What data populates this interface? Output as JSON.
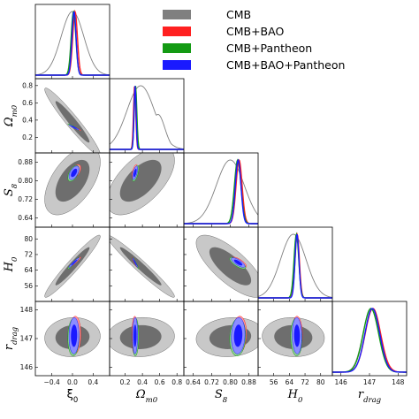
{
  "chart_data": {
    "type": "corner",
    "parameters": [
      {
        "id": "xi0",
        "label": "ξ₀",
        "label_base": "ξ",
        "label_sub": "0",
        "upright": true,
        "ticks": [
          -0.4,
          0.0,
          0.4
        ],
        "tick_labels": [
          "−0.4",
          "0.0",
          "0.4"
        ],
        "range": [
          -0.72,
          0.72
        ]
      },
      {
        "id": "omega_m0",
        "label": "Ωm0",
        "label_base": "Ω",
        "label_sub": "m0",
        "ticks": [
          0.2,
          0.4,
          0.6,
          0.8
        ],
        "tick_labels": [
          "0.2",
          "0.4",
          "0.6",
          "0.8"
        ],
        "range": [
          0.02,
          0.88
        ]
      },
      {
        "id": "s8",
        "label": "S8",
        "label_base": "S",
        "label_sub": "8",
        "ticks": [
          0.64,
          0.72,
          0.8,
          0.88
        ],
        "tick_labels": [
          "0.64",
          "0.72",
          "0.80",
          "0.88"
        ],
        "range": [
          0.6,
          0.92
        ]
      },
      {
        "id": "h0",
        "label": "H0",
        "label_base": "H",
        "label_sub": "0",
        "ticks": [
          56,
          64,
          72,
          80
        ],
        "tick_labels": [
          "56",
          "64",
          "72",
          "80"
        ],
        "range": [
          48,
          86
        ]
      },
      {
        "id": "r_drag",
        "label": "r_drag",
        "label_base": "r",
        "label_sub": "drag",
        "ticks": [
          146,
          147,
          148
        ],
        "tick_labels": [
          "146",
          "147",
          "148"
        ],
        "range": [
          145.7,
          148.3
        ]
      }
    ],
    "series": [
      {
        "name": "CMB",
        "color": "#808080",
        "mean": {
          "xi0": 0.0,
          "omega_m0": 0.38,
          "s8": 0.8,
          "h0": 66.0,
          "r_drag": 147.05
        },
        "sd": {
          "xi0": 0.22,
          "omega_m0": 0.16,
          "s8": 0.06,
          "h0": 6.5,
          "r_drag": 0.28
        }
      },
      {
        "name": "CMB+BAO",
        "color": "#ff2020",
        "mean": {
          "xi0": 0.05,
          "omega_m0": 0.31,
          "s8": 0.838,
          "h0": 68.0,
          "r_drag": 147.12
        },
        "sd": {
          "xi0": 0.045,
          "omega_m0": 0.013,
          "s8": 0.013,
          "h0": 1.1,
          "r_drag": 0.27
        }
      },
      {
        "name": "CMB+Pantheon",
        "color": "#139a13",
        "mean": {
          "xi0": 0.02,
          "omega_m0": 0.32,
          "s8": 0.832,
          "h0": 67.6,
          "r_drag": 147.05
        },
        "sd": {
          "xi0": 0.045,
          "omega_m0": 0.015,
          "s8": 0.014,
          "h0": 1.2,
          "r_drag": 0.27
        }
      },
      {
        "name": "CMB+BAO+Pantheon",
        "color": "#1a1aff",
        "mean": {
          "xi0": 0.03,
          "omega_m0": 0.315,
          "s8": 0.834,
          "h0": 67.9,
          "r_drag": 147.1
        },
        "sd": {
          "xi0": 0.04,
          "omega_m0": 0.012,
          "s8": 0.012,
          "h0": 1.0,
          "r_drag": 0.26
        }
      }
    ],
    "correlations": {
      "xi0|omega_m0": -0.96,
      "xi0|s8": 0.55,
      "xi0|h0": 0.96,
      "xi0|r_drag": 0.05,
      "omega_m0|s8": 0.6,
      "omega_m0|h0": -0.97,
      "omega_m0|r_drag": 0.05,
      "s8|h0": -0.75,
      "s8|r_drag": 0.1,
      "h0|r_drag": -0.05
    },
    "legend": {
      "location": "top-right"
    }
  }
}
